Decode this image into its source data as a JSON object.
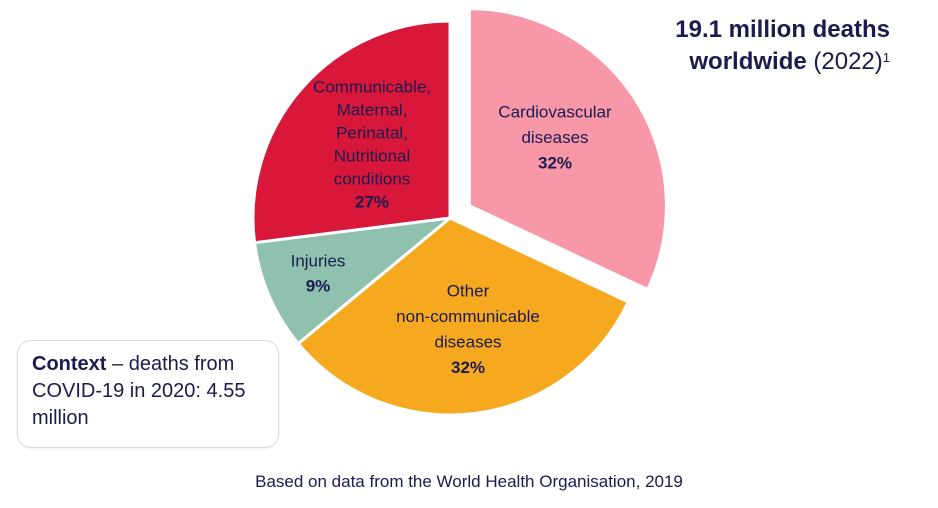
{
  "chart_data": {
    "type": "pie",
    "title": "19.1 million deaths worldwide",
    "title_note": "(2022)",
    "title_footnote": "1",
    "categories": [
      [
        "Cardiovascular",
        "diseases"
      ],
      [
        "Other",
        "non-communicable",
        "diseases"
      ],
      [
        "Injuries"
      ],
      [
        "Communicable,",
        "Maternal,",
        "Perinatal,",
        "Nutritional",
        "conditions"
      ]
    ],
    "values": [
      32,
      32,
      9,
      27
    ],
    "value_labels": [
      "32%",
      "32%",
      "9%",
      "27%"
    ],
    "colors": [
      "#f797a8",
      "#f6a81e",
      "#8fc1ae",
      "#d8173a"
    ],
    "exploded": [
      true,
      false,
      false,
      false
    ],
    "context": {
      "label": "Context",
      "text": "– deaths from COVID-19 in 2020: 4.55 million"
    },
    "source": "Based on data from the World Health Organisation, 2019"
  }
}
